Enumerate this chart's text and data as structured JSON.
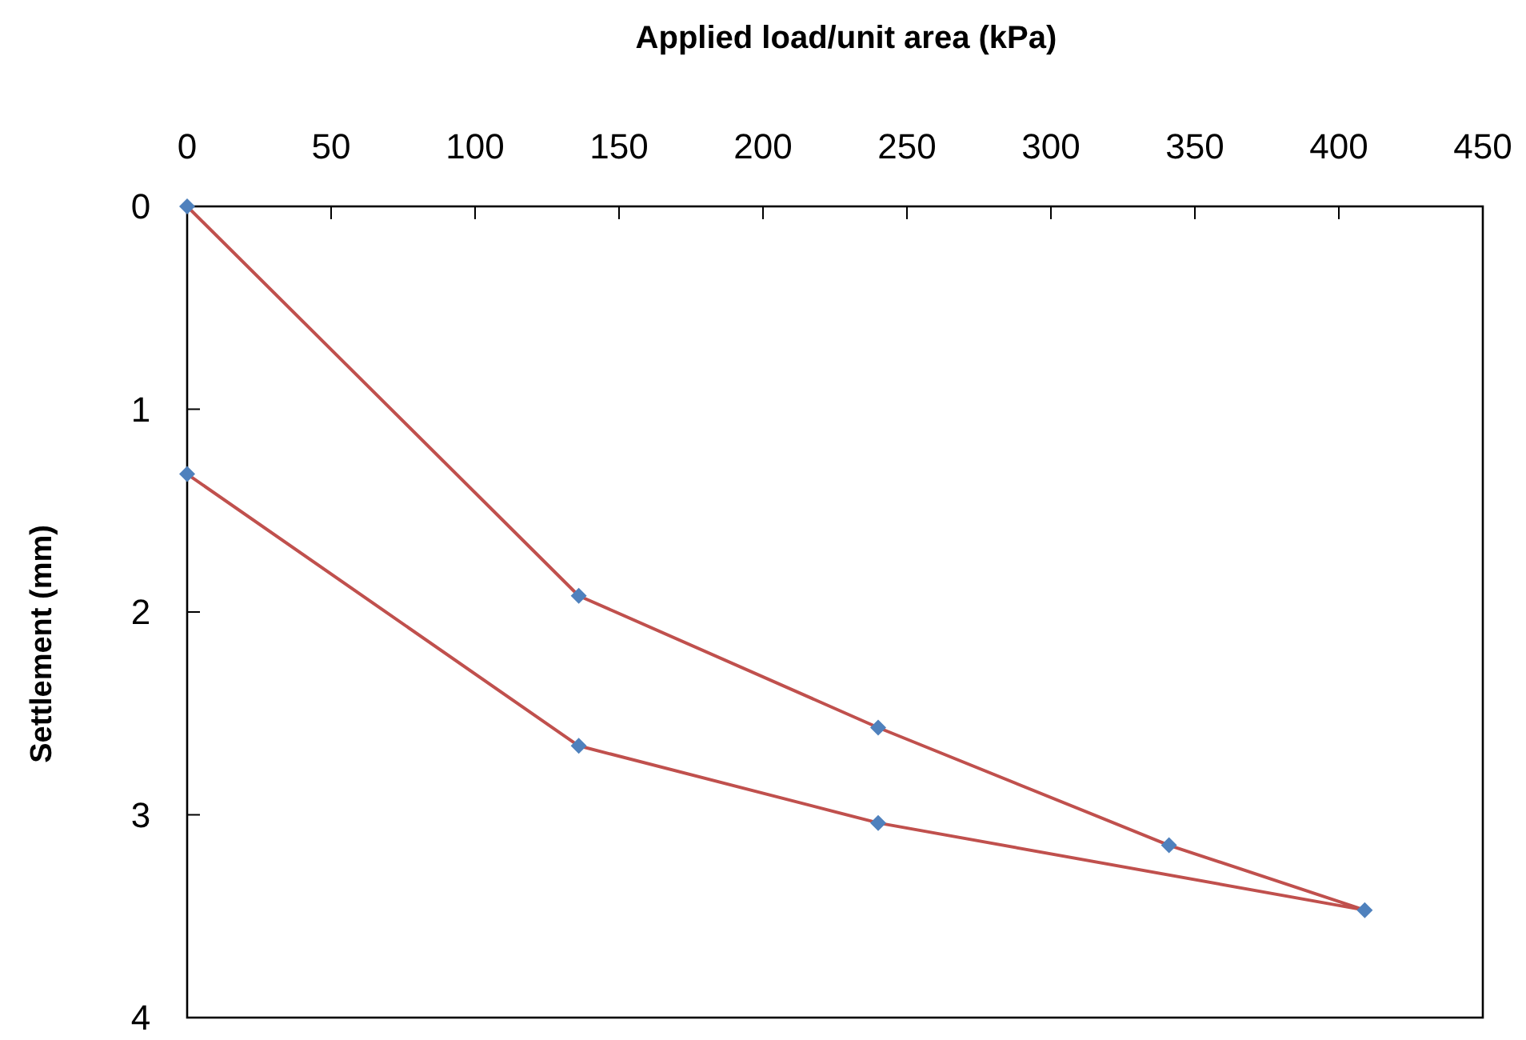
{
  "chart_data": {
    "type": "line",
    "xlabel": "Applied load/unit area (kPa)",
    "ylabel": "Settlement (mm)",
    "xlim": [
      0,
      450
    ],
    "xticks": [
      0,
      50,
      100,
      150,
      200,
      250,
      300,
      350,
      400,
      450
    ],
    "ylim": [
      4,
      0
    ],
    "yticks": [
      0,
      1,
      2,
      3,
      4
    ],
    "marker": "diamond",
    "line_style": "solid",
    "series": [
      {
        "color": "#c0504d",
        "x": [
          0,
          136,
          240,
          341,
          409,
          240,
          136,
          0
        ],
        "values": [
          0,
          1.92,
          2.57,
          3.15,
          3.47,
          3.04,
          2.66,
          1.32
        ]
      }
    ]
  }
}
